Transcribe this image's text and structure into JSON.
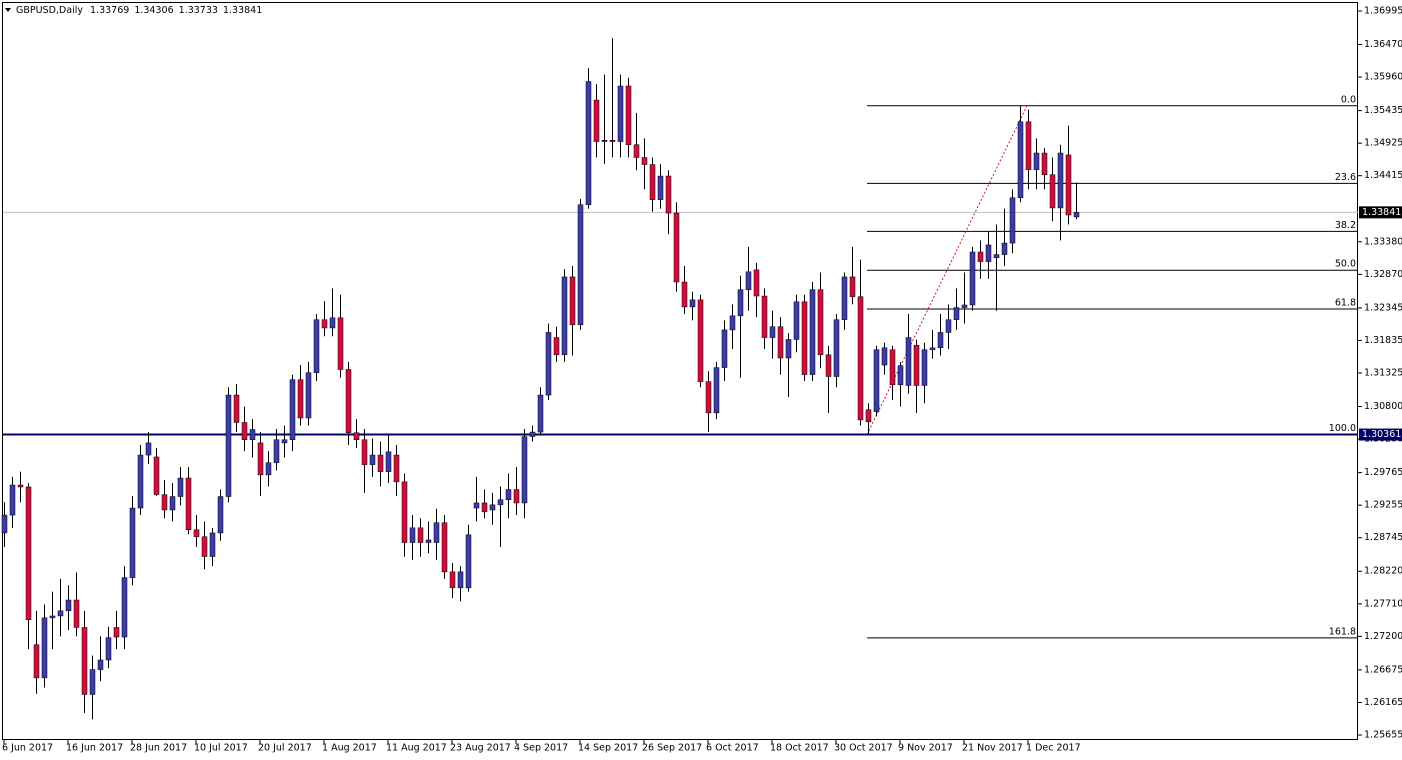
{
  "chart_data": {
    "type": "candlestick",
    "symbol": "GBPUSD,Daily",
    "up_color": "#3c3ca8",
    "down_color": "#d0103a",
    "categories": [
      "6 Jun 2017",
      null,
      null,
      null,
      null,
      null,
      null,
      null,
      "16 Jun 2017",
      null,
      null,
      null,
      null,
      null,
      null,
      null,
      "28 Jun 2017",
      null,
      null,
      null,
      null,
      null,
      null,
      null,
      "10 Jul 2017",
      null,
      null,
      null,
      null,
      null,
      null,
      null,
      "20 Jul 2017",
      null,
      null,
      null,
      null,
      null,
      null,
      null,
      "1 Aug 2017",
      null,
      null,
      null,
      null,
      null,
      null,
      null,
      "11 Aug 2017",
      null,
      null,
      null,
      null,
      null,
      null,
      null,
      "23 Aug 2017",
      null,
      null,
      null,
      null,
      null,
      null,
      null,
      "4 Sep 2017",
      null,
      null,
      null,
      null,
      null,
      null,
      null,
      "14 Sep 2017",
      null,
      null,
      null,
      null,
      null,
      null,
      null,
      "26 Sep 2017",
      null,
      null,
      null,
      null,
      null,
      null,
      null,
      "6 Oct 2017",
      null,
      null,
      null,
      null,
      null,
      null,
      null,
      "18 Oct 2017",
      null,
      null,
      null,
      null,
      null,
      null,
      null,
      "30 Oct 2017",
      null,
      null,
      null,
      null,
      null,
      null,
      null,
      "9 Nov 2017",
      null,
      null,
      null,
      null,
      null,
      null,
      null,
      "21 Nov 2017",
      null,
      null,
      null,
      null,
      null,
      null,
      null,
      "1 Dec 2017",
      null,
      null,
      null,
      null,
      null,
      null
    ],
    "ohlc": [
      [
        1.2882,
        1.293,
        1.286,
        1.291
      ],
      [
        1.291,
        1.297,
        1.289,
        1.2957
      ],
      [
        1.2957,
        1.2978,
        1.293,
        1.2954
      ],
      [
        1.2954,
        1.296,
        1.27,
        1.2746
      ],
      [
        1.2707,
        1.276,
        1.263,
        1.2655
      ],
      [
        1.2655,
        1.277,
        1.264,
        1.2749
      ],
      [
        1.2749,
        1.279,
        1.27,
        1.2752
      ],
      [
        1.2752,
        1.281,
        1.272,
        1.276
      ],
      [
        1.276,
        1.28,
        1.273,
        1.2777
      ],
      [
        1.2777,
        1.282,
        1.272,
        1.2734
      ],
      [
        1.2734,
        1.276,
        1.26,
        1.2629
      ],
      [
        1.2629,
        1.269,
        1.259,
        1.2668
      ],
      [
        1.2668,
        1.272,
        1.265,
        1.2683
      ],
      [
        1.2683,
        1.2735,
        1.267,
        1.2718
      ],
      [
        1.2734,
        1.276,
        1.27,
        1.2719
      ],
      [
        1.2719,
        1.283,
        1.27,
        1.2812
      ],
      [
        1.2812,
        1.294,
        1.28,
        1.2921
      ],
      [
        1.2921,
        1.302,
        1.291,
        1.3004
      ],
      [
        1.3004,
        1.304,
        1.299,
        1.3023
      ],
      [
        1.3001,
        1.3015,
        1.294,
        1.2942
      ],
      [
        1.2942,
        1.2965,
        1.2905,
        1.2918
      ],
      [
        1.2918,
        1.296,
        1.29,
        1.2939
      ],
      [
        1.2939,
        1.2985,
        1.2925,
        1.2968
      ],
      [
        1.2968,
        1.2985,
        1.288,
        1.2887
      ],
      [
        1.2887,
        1.291,
        1.286,
        1.2876
      ],
      [
        1.2876,
        1.29,
        1.2825,
        1.2845
      ],
      [
        1.2845,
        1.289,
        1.283,
        1.2882
      ],
      [
        1.2882,
        1.295,
        1.287,
        1.2939
      ],
      [
        1.2939,
        1.311,
        1.293,
        1.3098
      ],
      [
        1.3098,
        1.3115,
        1.304,
        1.3055
      ],
      [
        1.3055,
        1.308,
        1.301,
        1.3028
      ],
      [
        1.3028,
        1.306,
        1.3,
        1.3044
      ],
      [
        1.3023,
        1.304,
        1.294,
        1.2973
      ],
      [
        1.2973,
        1.301,
        1.2955,
        1.2992
      ],
      [
        1.2992,
        1.3045,
        1.298,
        1.3028
      ],
      [
        1.3023,
        1.305,
        1.3,
        1.3028
      ],
      [
        1.3028,
        1.313,
        1.301,
        1.3122
      ],
      [
        1.3122,
        1.3145,
        1.305,
        1.3062
      ],
      [
        1.3062,
        1.315,
        1.305,
        1.3133
      ],
      [
        1.3133,
        1.3225,
        1.312,
        1.3216
      ],
      [
        1.3216,
        1.3245,
        1.319,
        1.3203
      ],
      [
        1.3203,
        1.3265,
        1.319,
        1.3219
      ],
      [
        1.3219,
        1.3255,
        1.3125,
        1.3138
      ],
      [
        1.3138,
        1.315,
        1.302,
        1.3039
      ],
      [
        1.3039,
        1.306,
        1.3015,
        1.3028
      ],
      [
        1.3028,
        1.3045,
        1.2945,
        1.2989
      ],
      [
        1.2989,
        1.303,
        1.297,
        1.3004
      ],
      [
        1.3004,
        1.3025,
        1.2955,
        1.2978
      ],
      [
        1.2978,
        1.3035,
        1.296,
        1.3009
      ],
      [
        1.3004,
        1.302,
        1.294,
        1.2962
      ],
      [
        1.2962,
        1.2975,
        1.2845,
        1.2867
      ],
      [
        1.2867,
        1.291,
        1.284,
        1.289
      ],
      [
        1.289,
        1.2905,
        1.2845,
        1.2867
      ],
      [
        1.2867,
        1.29,
        1.285,
        1.2871
      ],
      [
        1.2867,
        1.292,
        1.284,
        1.2898
      ],
      [
        1.2898,
        1.291,
        1.281,
        1.2821
      ],
      [
        1.2821,
        1.2835,
        1.278,
        1.2796
      ],
      [
        1.2796,
        1.283,
        1.2775,
        1.2821
      ],
      [
        1.2796,
        1.2895,
        1.279,
        1.2879
      ],
      [
        1.2921,
        1.297,
        1.29,
        1.2929
      ],
      [
        1.2929,
        1.295,
        1.2905,
        1.2915
      ],
      [
        1.2918,
        1.2945,
        1.2895,
        1.2926
      ],
      [
        1.2926,
        1.2955,
        1.286,
        1.2934
      ],
      [
        1.2934,
        1.2975,
        1.2905,
        1.295
      ],
      [
        1.295,
        1.2985,
        1.291,
        1.2929
      ],
      [
        1.2929,
        1.3045,
        1.2905,
        1.3033
      ],
      [
        1.3033,
        1.305,
        1.3025,
        1.304
      ],
      [
        1.304,
        1.311,
        1.3035,
        1.3098
      ],
      [
        1.3098,
        1.321,
        1.309,
        1.3196
      ],
      [
        1.3188,
        1.3205,
        1.315,
        1.3161
      ],
      [
        1.3161,
        1.3295,
        1.315,
        1.3283
      ],
      [
        1.3283,
        1.33,
        1.316,
        1.3208
      ],
      [
        1.3208,
        1.3405,
        1.32,
        1.3396
      ],
      [
        1.3396,
        1.361,
        1.339,
        1.3589
      ],
      [
        1.356,
        1.3585,
        1.347,
        1.3495
      ],
      [
        1.3495,
        1.36,
        1.346,
        1.3497
      ],
      [
        1.3497,
        1.3657,
        1.347,
        1.3495
      ],
      [
        1.3495,
        1.36,
        1.347,
        1.3582
      ],
      [
        1.3582,
        1.3595,
        1.347,
        1.349
      ],
      [
        1.349,
        1.354,
        1.345,
        1.347
      ],
      [
        1.347,
        1.35,
        1.342,
        1.3459
      ],
      [
        1.3459,
        1.347,
        1.3385,
        1.3404
      ],
      [
        1.3404,
        1.346,
        1.339,
        1.3441
      ],
      [
        1.3441,
        1.345,
        1.335,
        1.3383
      ],
      [
        1.3383,
        1.34,
        1.326,
        1.3275
      ],
      [
        1.3275,
        1.33,
        1.3225,
        1.3236
      ],
      [
        1.3236,
        1.326,
        1.3215,
        1.3247
      ],
      [
        1.3247,
        1.3255,
        1.311,
        1.3119
      ],
      [
        1.3119,
        1.3135,
        1.304,
        1.307
      ],
      [
        1.307,
        1.315,
        1.306,
        1.3141
      ],
      [
        1.3141,
        1.3215,
        1.312,
        1.32
      ],
      [
        1.32,
        1.324,
        1.317,
        1.3222
      ],
      [
        1.3222,
        1.3285,
        1.3125,
        1.3263
      ],
      [
        1.3263,
        1.333,
        1.323,
        1.3291
      ],
      [
        1.3294,
        1.3305,
        1.322,
        1.3253
      ],
      [
        1.3253,
        1.3265,
        1.317,
        1.3188
      ],
      [
        1.3188,
        1.323,
        1.3155,
        1.3205
      ],
      [
        1.3205,
        1.322,
        1.313,
        1.3156
      ],
      [
        1.3156,
        1.3195,
        1.3095,
        1.3185
      ],
      [
        1.3185,
        1.3255,
        1.3165,
        1.3244
      ],
      [
        1.3244,
        1.3255,
        1.312,
        1.313
      ],
      [
        1.313,
        1.3275,
        1.312,
        1.3263
      ],
      [
        1.3263,
        1.329,
        1.314,
        1.3161
      ],
      [
        1.3161,
        1.3175,
        1.307,
        1.3127
      ],
      [
        1.3127,
        1.3225,
        1.311,
        1.3216
      ],
      [
        1.3216,
        1.329,
        1.32,
        1.3283
      ],
      [
        1.3283,
        1.333,
        1.324,
        1.3252
      ],
      [
        1.3252,
        1.331,
        1.305,
        1.3059
      ],
      [
        1.3075,
        1.3085,
        1.3036,
        1.3056
      ],
      [
        1.3072,
        1.3175,
        1.3065,
        1.3169
      ],
      [
        1.3145,
        1.318,
        1.313,
        1.3172
      ],
      [
        1.3169,
        1.3175,
        1.309,
        1.3114
      ],
      [
        1.3114,
        1.315,
        1.308,
        1.3144
      ],
      [
        1.3113,
        1.3225,
        1.31,
        1.3188
      ],
      [
        1.3176,
        1.3185,
        1.307,
        1.3113
      ],
      [
        1.3113,
        1.318,
        1.3085,
        1.3169
      ],
      [
        1.3169,
        1.32,
        1.3155,
        1.3172
      ],
      [
        1.3172,
        1.3225,
        1.316,
        1.3196
      ],
      [
        1.3196,
        1.324,
        1.317,
        1.3216
      ],
      [
        1.3216,
        1.3265,
        1.32,
        1.3235
      ],
      [
        1.3235,
        1.329,
        1.321,
        1.3239
      ],
      [
        1.3239,
        1.333,
        1.323,
        1.3322
      ],
      [
        1.3322,
        1.334,
        1.328,
        1.3307
      ],
      [
        1.3307,
        1.3355,
        1.328,
        1.3333
      ],
      [
        1.3313,
        1.3365,
        1.323,
        1.3318
      ],
      [
        1.3318,
        1.339,
        1.33,
        1.3336
      ],
      [
        1.3336,
        1.342,
        1.332,
        1.3407
      ],
      [
        1.3407,
        1.3551,
        1.34,
        1.3526
      ],
      [
        1.3526,
        1.3545,
        1.342,
        1.3451
      ],
      [
        1.3451,
        1.35,
        1.342,
        1.3477
      ],
      [
        1.3477,
        1.3485,
        1.342,
        1.3443
      ],
      [
        1.3443,
        1.347,
        1.337,
        1.3391
      ],
      [
        1.3391,
        1.349,
        1.334,
        1.3477
      ],
      [
        1.3474,
        1.352,
        1.3365,
        1.338
      ],
      [
        1.33769,
        1.34306,
        1.33733,
        1.33841
      ]
    ],
    "ylim": [
      1.25577,
      1.37167
    ],
    "yticks": [
      {
        "value": 1.36995,
        "label": "1.36995"
      },
      {
        "value": 1.3647,
        "label": "1.36470"
      },
      {
        "value": 1.3596,
        "label": "1.35960"
      },
      {
        "value": 1.35435,
        "label": "1.35435"
      },
      {
        "value": 1.34925,
        "label": "1.34925"
      },
      {
        "value": 1.34415,
        "label": "1.34415"
      },
      {
        "value": 1.3338,
        "label": "1.33380"
      },
      {
        "value": 1.3287,
        "label": "1.32870"
      },
      {
        "value": 1.32345,
        "label": "1.32345"
      },
      {
        "value": 1.31835,
        "label": "1.31835"
      },
      {
        "value": 1.31325,
        "label": "1.31325"
      },
      {
        "value": 1.308,
        "label": "1.30800"
      },
      {
        "value": 1.3029,
        "label": "1.30290"
      },
      {
        "value": 1.29765,
        "label": "1.29765"
      },
      {
        "value": 1.29255,
        "label": "1.29255"
      },
      {
        "value": 1.28745,
        "label": "1.28745"
      },
      {
        "value": 1.2822,
        "label": "1.28220"
      },
      {
        "value": 1.2771,
        "label": "1.27710"
      },
      {
        "value": 1.272,
        "label": "1.27200"
      },
      {
        "value": 1.26675,
        "label": "1.26675"
      },
      {
        "value": 1.26165,
        "label": "1.26165"
      },
      {
        "value": 1.25655,
        "label": "1.25655"
      }
    ],
    "horizontal_line": {
      "value": 1.30361,
      "label": "1.30361",
      "color": "#000066"
    },
    "fibonacci": {
      "high": 1.3551,
      "low": 1.3036,
      "color": "#000000",
      "trend_color": "#d0103a",
      "levels": [
        {
          "value": 0,
          "label": "0.0"
        },
        {
          "value": 23.6,
          "label": "23.6"
        },
        {
          "value": 38.2,
          "label": "38.2"
        },
        {
          "value": 50,
          "label": "50.0"
        },
        {
          "value": 61.8,
          "label": "61.8"
        },
        {
          "value": 100,
          "label": "100.0"
        },
        {
          "value": 161.8,
          "label": "161.8"
        }
      ]
    }
  }
}
